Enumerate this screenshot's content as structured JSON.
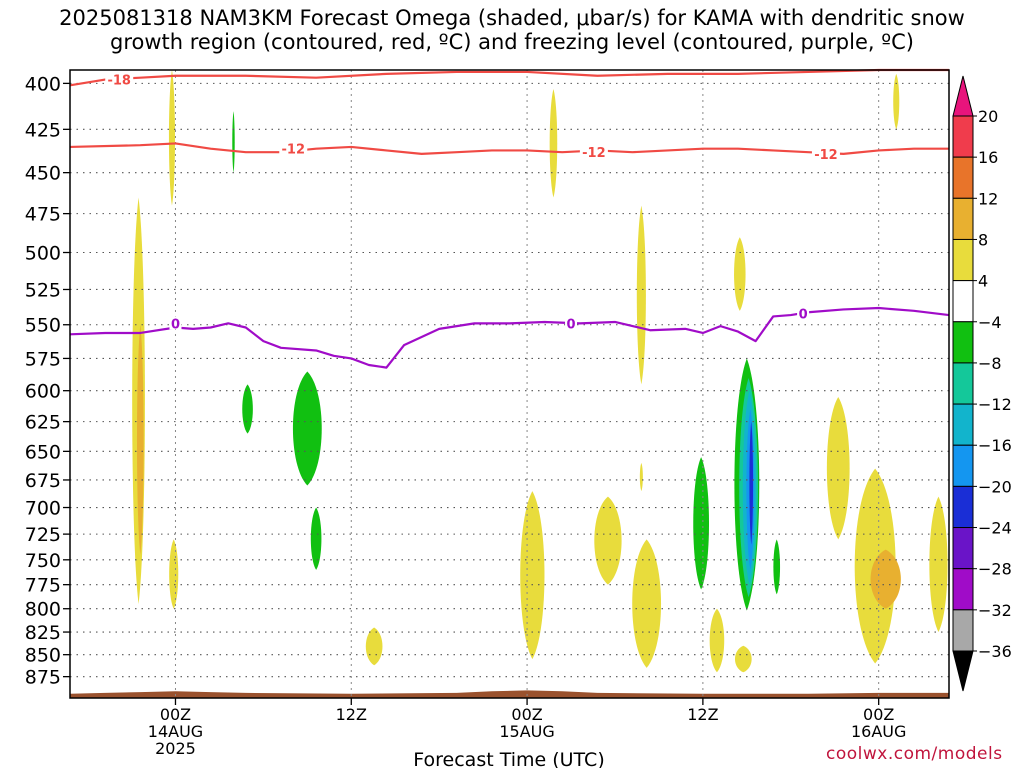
{
  "title_line1": "2025081318 NAM3KM Forecast Omega (shaded, μbar/s) for KAMA with dendritic snow",
  "title_line2": "growth region (contoured, red, ºC) and freezing level (contoured, purple, ºC)",
  "credit": "coolwx.com/models",
  "chart_data": {
    "type": "time-height contour",
    "xlabel": "Forecast Time (UTC)",
    "ylabel": "",
    "x_range_hours": [
      -6,
      44
    ],
    "y_axis": {
      "scale": "pressure (inverted)",
      "range": [
        900,
        393
      ],
      "ticks": [
        400,
        425,
        450,
        475,
        500,
        525,
        550,
        575,
        600,
        625,
        650,
        675,
        700,
        725,
        750,
        775,
        800,
        825,
        850,
        875
      ]
    },
    "x_ticks": [
      {
        "hour": 0,
        "label": "00Z",
        "sub1": "14AUG",
        "sub2": "2025"
      },
      {
        "hour": 10,
        "label": "12Z",
        "sub1": "",
        "sub2": ""
      },
      {
        "hour": 20,
        "label": "00Z",
        "sub1": "15AUG",
        "sub2": ""
      },
      {
        "hour": 30,
        "label": "12Z",
        "sub1": "",
        "sub2": ""
      },
      {
        "hour": 40,
        "label": "00Z",
        "sub1": "16AUG",
        "sub2": ""
      }
    ],
    "grid": true,
    "colorbar": {
      "labels": [
        "20",
        "16",
        "12",
        "8",
        "4",
        "−4",
        "−8",
        "−12",
        "−16",
        "−20",
        "−24",
        "−28",
        "−32",
        "−36"
      ],
      "colors": [
        "#f03c4c",
        "#e8742a",
        "#e8b030",
        "#e8dc3c",
        "#ffffff",
        "#11c011",
        "#14c89a",
        "#12b4cc",
        "#1496f0",
        "#1a2ed6",
        "#6a14c8",
        "#a00cc8",
        "#a8a8a8"
      ],
      "top_arrow_color": "#e8147c",
      "bottom_arrow_color": "#000000"
    },
    "contours": {
      "dgz_lower": {
        "label": "-12",
        "color": "#f04a44",
        "hours": [
          -6,
          -2,
          0,
          2,
          4,
          6,
          8,
          10,
          12,
          14,
          16,
          18,
          20,
          22,
          24,
          26,
          28,
          30,
          32,
          34,
          36,
          38,
          40,
          42,
          44
        ],
        "pressure": [
          435,
          434,
          433,
          436,
          438,
          438,
          436,
          435,
          437,
          439,
          438,
          437,
          437,
          438,
          437,
          438,
          437,
          436,
          436,
          437,
          438,
          439,
          437,
          436,
          436
        ]
      },
      "dgz_upper": {
        "label": "-18",
        "color": "#f04a44",
        "hours": [
          -6,
          -4,
          -2,
          0,
          4,
          8,
          12,
          16,
          20,
          24,
          28,
          32,
          36,
          40,
          44
        ],
        "pressure": [
          401,
          398,
          397,
          396,
          396,
          397,
          395,
          394,
          394,
          396,
          395,
          395,
          394,
          393,
          393
        ]
      },
      "freezing_level": {
        "label": "0",
        "color": "#a00cc8",
        "hours": [
          -6,
          -4,
          -2,
          0,
          1,
          2,
          3,
          4,
          5,
          6,
          8,
          9,
          10,
          11,
          12,
          13,
          15,
          17,
          19,
          21,
          23,
          25,
          27,
          29,
          30,
          31,
          32,
          33,
          34,
          35,
          36,
          38,
          40,
          42,
          44
        ],
        "pressure": [
          557,
          556,
          556,
          552,
          553,
          552,
          549,
          552,
          562,
          567,
          569,
          573,
          575,
          580,
          582,
          565,
          553,
          549,
          549,
          548,
          549,
          548,
          554,
          553,
          556,
          551,
          555,
          562,
          544,
          543,
          541,
          539,
          538,
          540,
          543
        ]
      },
      "contour_labels": [
        {
          "text": "-18",
          "hour": -3.2,
          "pressure": 398,
          "ref": "dgz_upper"
        },
        {
          "text": "-12",
          "hour": 6.7,
          "pressure": 436,
          "ref": "dgz_lower"
        },
        {
          "text": "-12",
          "hour": 23.8,
          "pressure": 438,
          "ref": "dgz_lower"
        },
        {
          "text": "-12",
          "hour": 37.0,
          "pressure": 439,
          "ref": "dgz_lower"
        },
        {
          "text": "0",
          "hour": 0,
          "pressure": 549,
          "ref": "freezing_level"
        },
        {
          "text": "0",
          "hour": 22.5,
          "pressure": 549,
          "ref": "freezing_level"
        },
        {
          "text": "0",
          "hour": 35.7,
          "pressure": 542,
          "ref": "freezing_level"
        }
      ]
    },
    "omega_regions": [
      {
        "hour": -2.1,
        "p_top": 465,
        "p_bot": 795,
        "half_width_h": 0.42,
        "value": 4
      },
      {
        "hour": -2.0,
        "p_top": 550,
        "p_bot": 745,
        "half_width_h": 0.22,
        "value": 8
      },
      {
        "hour": -0.2,
        "p_top": 393,
        "p_bot": 470,
        "half_width_h": 0.2,
        "value": 4
      },
      {
        "hour": -0.1,
        "p_top": 730,
        "p_bot": 800,
        "half_width_h": 0.3,
        "value": 4
      },
      {
        "hour": 3.3,
        "p_top": 415,
        "p_bot": 450,
        "half_width_h": 0.08,
        "value": -4
      },
      {
        "hour": 4.1,
        "p_top": 595,
        "p_bot": 635,
        "half_width_h": 0.35,
        "value": -4
      },
      {
        "hour": 7.5,
        "p_top": 585,
        "p_bot": 680,
        "half_width_h": 0.95,
        "value": -4
      },
      {
        "hour": 8.0,
        "p_top": 700,
        "p_bot": 760,
        "half_width_h": 0.35,
        "value": -4
      },
      {
        "hour": 11.3,
        "p_top": 820,
        "p_bot": 862,
        "half_width_h": 0.55,
        "value": 4
      },
      {
        "hour": 20.3,
        "p_top": 685,
        "p_bot": 855,
        "half_width_h": 0.8,
        "value": 4
      },
      {
        "hour": 21.5,
        "p_top": 403,
        "p_bot": 465,
        "half_width_h": 0.25,
        "value": 4
      },
      {
        "hour": 24.6,
        "p_top": 690,
        "p_bot": 775,
        "half_width_h": 0.9,
        "value": 4
      },
      {
        "hour": 26.8,
        "p_top": 730,
        "p_bot": 865,
        "half_width_h": 0.95,
        "value": 4
      },
      {
        "hour": 26.5,
        "p_top": 470,
        "p_bot": 595,
        "half_width_h": 0.3,
        "value": 4
      },
      {
        "hour": 26.5,
        "p_top": 660,
        "p_bot": 685,
        "half_width_h": 0.1,
        "value": 4
      },
      {
        "hour": 29.9,
        "p_top": 655,
        "p_bot": 780,
        "half_width_h": 0.52,
        "value": -4
      },
      {
        "hour": 30.8,
        "p_top": 800,
        "p_bot": 870,
        "half_width_h": 0.48,
        "value": 4
      },
      {
        "hour": 32.3,
        "p_top": 840,
        "p_bot": 870,
        "half_width_h": 0.55,
        "value": 4
      },
      {
        "hour": 32.1,
        "p_top": 490,
        "p_bot": 540,
        "half_width_h": 0.38,
        "value": 4
      },
      {
        "hour": 32.5,
        "p_top": 575,
        "p_bot": 802,
        "half_width_h": 0.82,
        "value": -4
      },
      {
        "hour": 32.6,
        "p_top": 590,
        "p_bot": 788,
        "half_width_h": 0.62,
        "value": -8
      },
      {
        "hour": 32.65,
        "p_top": 600,
        "p_bot": 775,
        "half_width_h": 0.44,
        "value": -12
      },
      {
        "hour": 32.7,
        "p_top": 615,
        "p_bot": 760,
        "half_width_h": 0.26,
        "value": -16
      },
      {
        "hour": 32.75,
        "p_top": 625,
        "p_bot": 735,
        "half_width_h": 0.12,
        "value": -20
      },
      {
        "hour": 34.2,
        "p_top": 730,
        "p_bot": 785,
        "half_width_h": 0.22,
        "value": -4
      },
      {
        "hour": 37.7,
        "p_top": 605,
        "p_bot": 730,
        "half_width_h": 0.75,
        "value": 4
      },
      {
        "hour": 39.8,
        "p_top": 665,
        "p_bot": 860,
        "half_width_h": 1.35,
        "value": 4
      },
      {
        "hour": 40.4,
        "p_top": 740,
        "p_bot": 800,
        "half_width_h": 1.0,
        "value": 8
      },
      {
        "hour": 41.0,
        "p_top": 395,
        "p_bot": 425,
        "half_width_h": 0.2,
        "value": 4
      },
      {
        "hour": 43.4,
        "p_top": 690,
        "p_bot": 825,
        "half_width_h": 0.6,
        "value": 4
      }
    ],
    "terrain": {
      "color": "#9a522e",
      "hours": [
        -6,
        -4,
        -2,
        0,
        2,
        4,
        10,
        16,
        18,
        20,
        22,
        24,
        30,
        36,
        40,
        42,
        44
      ],
      "pressure": [
        895,
        894,
        893,
        892,
        893,
        894,
        895,
        894,
        892,
        891,
        892,
        894,
        895,
        895,
        894,
        894,
        894
      ]
    }
  }
}
